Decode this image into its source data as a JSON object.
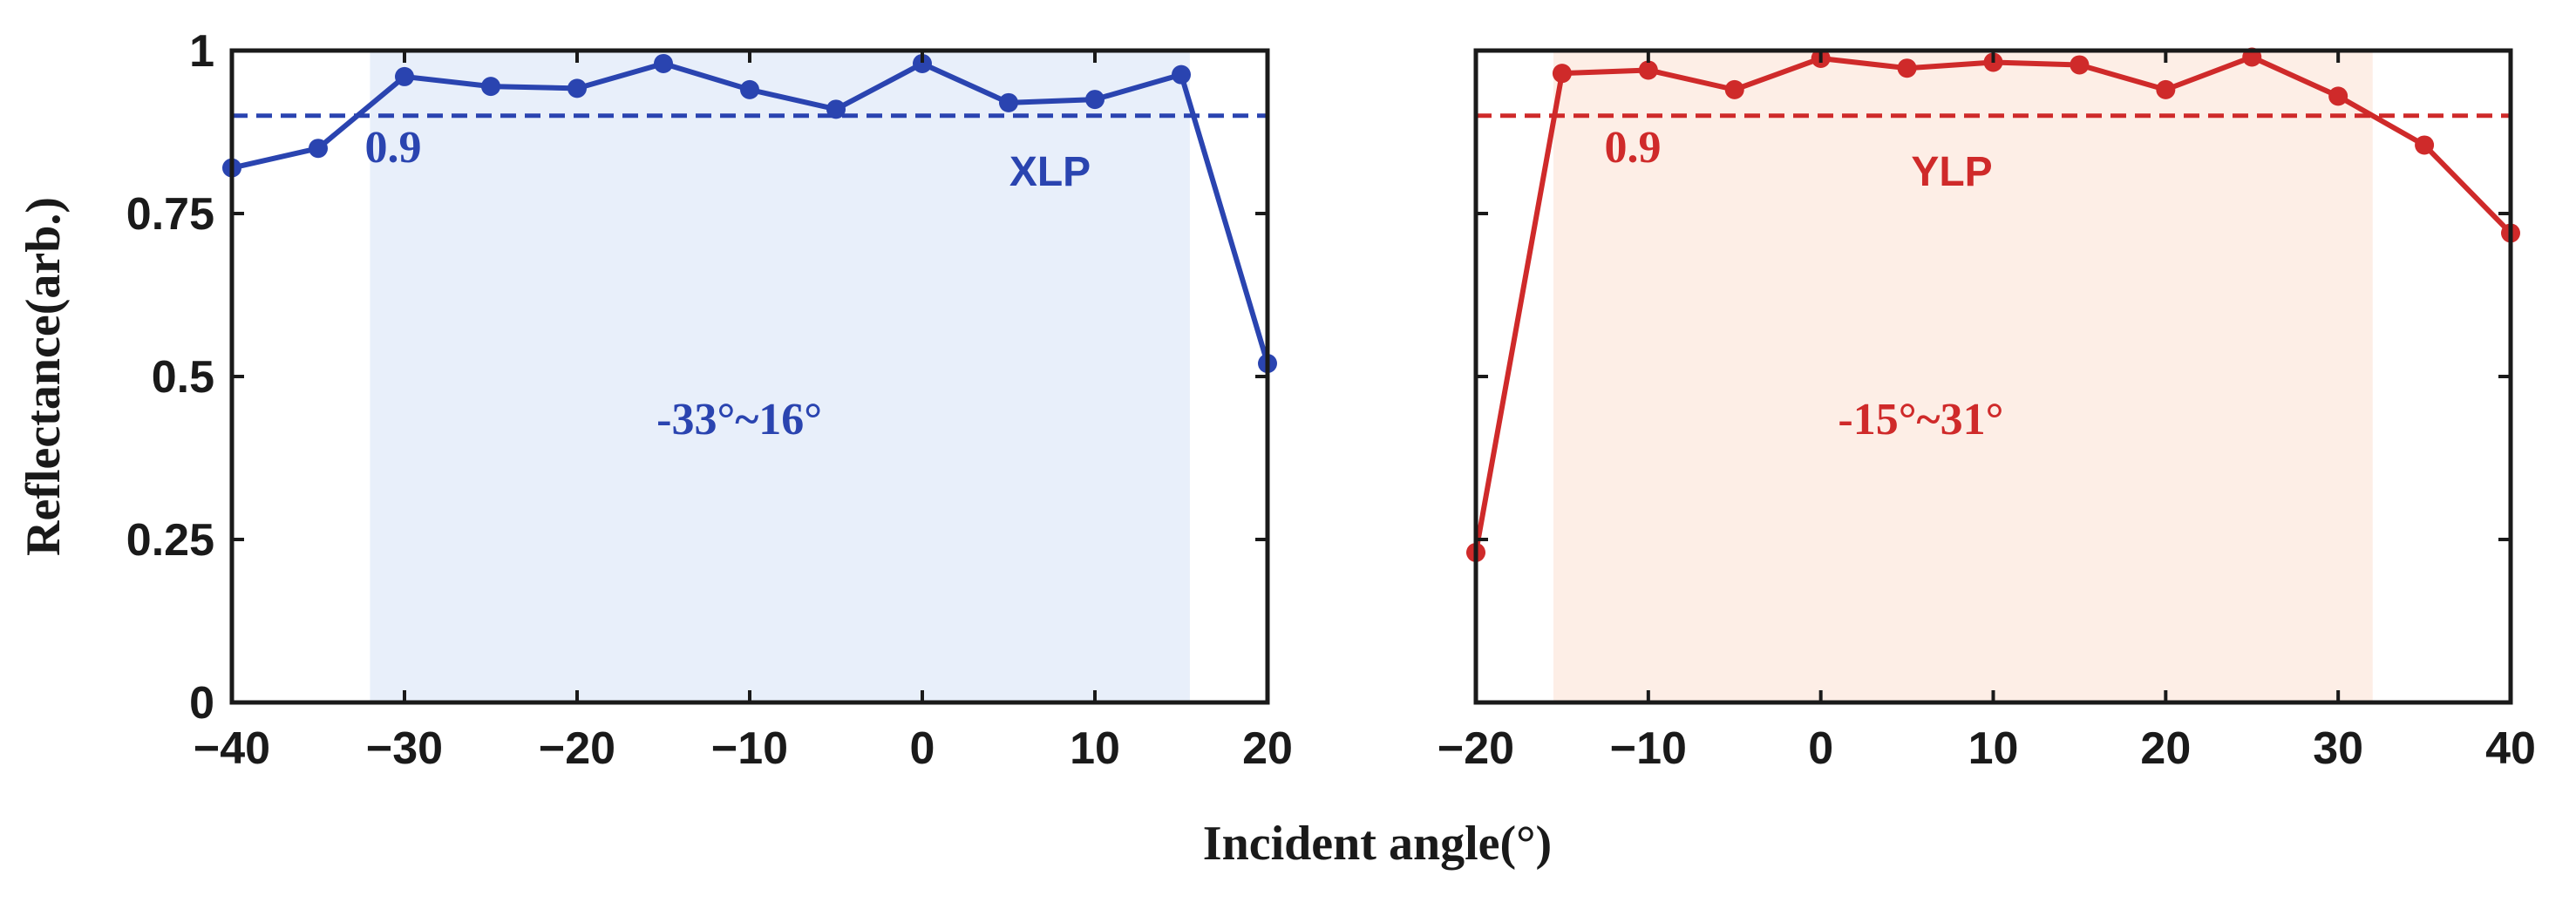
{
  "chart_data": [
    {
      "type": "line",
      "name": "left-panel",
      "xlim": [
        -40,
        20
      ],
      "ylim": [
        0,
        1
      ],
      "xticks": [
        "−40",
        "−30",
        "−20",
        "−10",
        "0",
        "10",
        "20"
      ],
      "yticks": [
        "0",
        "0.25",
        "0.5",
        "0.75",
        "1"
      ],
      "xtick_values": [
        -40,
        -30,
        -20,
        -10,
        0,
        10,
        20
      ],
      "ytick_values": [
        0,
        0.25,
        0.5,
        0.75,
        1
      ],
      "color": "#2a44b0",
      "band_color": "#e8effa",
      "band_range": [
        -32,
        15.5
      ],
      "threshold": 0.9,
      "threshold_label": "0.9",
      "polarization_label": "XLP",
      "range_label": "-33°~16°",
      "series": [
        {
          "name": "XLP",
          "x": [
            -40,
            -35,
            -30,
            -25,
            -20,
            -15,
            -10,
            -5,
            0,
            5,
            10,
            15,
            20
          ],
          "y": [
            0.82,
            0.85,
            0.96,
            0.945,
            0.942,
            0.98,
            0.94,
            0.91,
            0.98,
            0.92,
            0.925,
            0.963,
            0.52
          ]
        }
      ]
    },
    {
      "type": "line",
      "name": "right-panel",
      "xlim": [
        -20,
        40
      ],
      "ylim": [
        0,
        1
      ],
      "xticks": [
        "−20",
        "−10",
        "0",
        "10",
        "20",
        "30",
        "40"
      ],
      "xtick_values": [
        -20,
        -10,
        0,
        10,
        20,
        30,
        40
      ],
      "ytick_values": [
        0,
        0.25,
        0.5,
        0.75,
        1
      ],
      "color": "#cf2a2a",
      "band_color": "#fdeee6",
      "band_range": [
        -15.5,
        32
      ],
      "threshold": 0.9,
      "threshold_label": "0.9",
      "polarization_label": "YLP",
      "range_label": "-15°~31°",
      "series": [
        {
          "name": "YLP",
          "x": [
            -20,
            -15,
            -10,
            -5,
            0,
            5,
            10,
            15,
            20,
            25,
            30,
            35,
            40
          ],
          "y": [
            0.23,
            0.965,
            0.97,
            0.94,
            0.988,
            0.973,
            0.982,
            0.978,
            0.94,
            0.99,
            0.93,
            0.855,
            0.72
          ]
        }
      ]
    }
  ],
  "ylabel": "Reflectance(arb.)",
  "xlabel": "Incident angle(°)"
}
